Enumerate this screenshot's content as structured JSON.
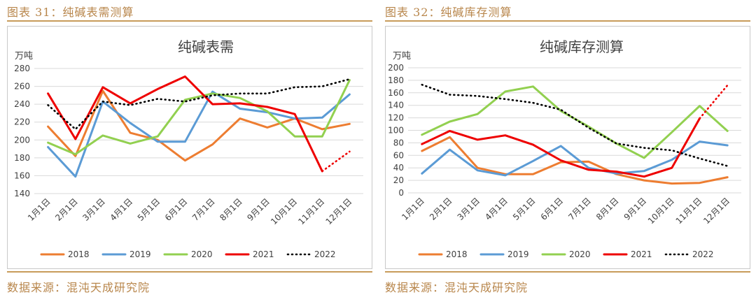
{
  "panels": [
    {
      "fig_title": "图表 31：纯碱表需测算",
      "source": "数据来源：混沌天成研究院"
    },
    {
      "fig_title": "图表 32：纯碱库存测算",
      "source": "数据来源：混沌天成研究院"
    }
  ],
  "colors": {
    "2018": "#ed7d31",
    "2019": "#5b9bd5",
    "2020": "#92d050",
    "2021": "#ee0000",
    "2022": "#000000",
    "grid": "#d9d9d9",
    "rule": "#c89b5a"
  },
  "chart_data": [
    {
      "type": "line",
      "title": "纯碱表需",
      "unit": "万吨",
      "categories": [
        "1月1日",
        "2月1日",
        "3月1日",
        "4月1日",
        "5月1日",
        "6月1日",
        "7月1日",
        "8月1日",
        "9月1日",
        "10月1日",
        "11月1日",
        "12月1日"
      ],
      "ylim": [
        140,
        280
      ],
      "yticks": [
        140,
        160,
        180,
        200,
        220,
        240,
        260,
        280
      ],
      "grid": true,
      "legend_position": "bottom",
      "series": [
        {
          "name": "2018",
          "values": [
            215,
            182,
            255,
            208,
            200,
            177,
            195,
            224,
            214,
            224,
            212,
            218
          ]
        },
        {
          "name": "2019",
          "values": [
            192,
            159,
            243,
            219,
            198,
            198,
            254,
            235,
            231,
            224,
            225,
            251
          ]
        },
        {
          "name": "2020",
          "values": [
            197,
            184,
            205,
            196,
            204,
            245,
            252,
            247,
            232,
            204,
            204,
            267
          ]
        },
        {
          "name": "2021",
          "values": [
            252,
            201,
            259,
            241,
            257,
            271,
            240,
            241,
            237,
            229,
            165,
            null
          ],
          "projected": [
            null,
            null,
            null,
            null,
            null,
            null,
            null,
            null,
            null,
            null,
            165,
            187
          ]
        },
        {
          "name": "2022",
          "dotted": true,
          "values": [
            239,
            212,
            243,
            239,
            246,
            243,
            250,
            252,
            252,
            259,
            260,
            268
          ]
        }
      ]
    },
    {
      "type": "line",
      "title": "纯碱库存测算",
      "unit": "万吨",
      "categories": [
        "1月1日",
        "2月1日",
        "3月1日",
        "4月1日",
        "5月1日",
        "6月1日",
        "7月1日",
        "8月1日",
        "9月1日",
        "10月1日",
        "11月1日",
        "12月1日"
      ],
      "ylim": [
        0,
        200
      ],
      "yticks": [
        0,
        20,
        40,
        60,
        80,
        100,
        120,
        140,
        160,
        180,
        200
      ],
      "grid": true,
      "legend_position": "bottom",
      "series": [
        {
          "name": "2018",
          "values": [
            67,
            89,
            40,
            30,
            30,
            49,
            50,
            30,
            20,
            15,
            16,
            25
          ]
        },
        {
          "name": "2019",
          "values": [
            31,
            69,
            36,
            28,
            51,
            75,
            40,
            31,
            35,
            53,
            82,
            76
          ]
        },
        {
          "name": "2020",
          "values": [
            93,
            114,
            126,
            162,
            170,
            131,
            106,
            79,
            56,
            97,
            139,
            99
          ]
        },
        {
          "name": "2021",
          "values": [
            78,
            99,
            85,
            92,
            77,
            52,
            37,
            34,
            26,
            40,
            119,
            null
          ],
          "projected": [
            null,
            null,
            null,
            null,
            null,
            null,
            null,
            null,
            null,
            null,
            119,
            172
          ]
        },
        {
          "name": "2022",
          "dotted": true,
          "values": [
            173,
            157,
            155,
            150,
            144,
            133,
            104,
            79,
            72,
            68,
            55,
            43
          ]
        }
      ]
    }
  ]
}
